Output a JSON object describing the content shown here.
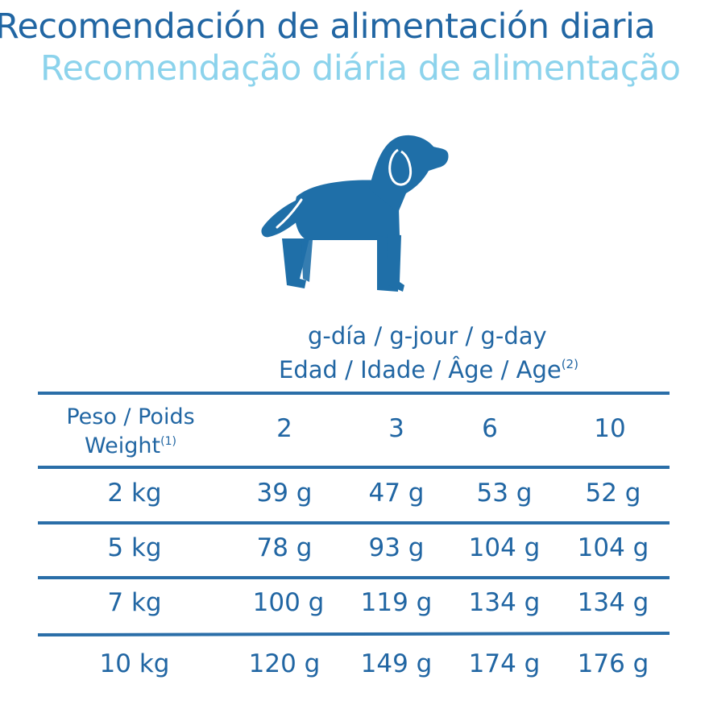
{
  "title": {
    "spanish": "Recomendación de alimentación diaria",
    "portuguese": "Recomendação diária de alimentação"
  },
  "icon": {
    "name": "dog-icon",
    "color": "#1f6fa8"
  },
  "table": {
    "unit_label": "g-día /  g-jour / g-day",
    "age_label": "Edad / Idade / Âge / Age",
    "age_note": "(2)",
    "weight_label_line1": "Peso / Poids",
    "weight_label_line2": "Weight",
    "weight_note": "(1)",
    "age_columns": [
      "2",
      "3",
      "6",
      "10"
    ],
    "rows": [
      {
        "weight": "2 kg",
        "values": [
          "39 g",
          "47 g",
          "53 g",
          "52 g"
        ]
      },
      {
        "weight": "5 kg",
        "values": [
          "78 g",
          "93 g",
          "104 g",
          "104 g"
        ]
      },
      {
        "weight": "7 kg",
        "values": [
          "100 g",
          "119 g",
          "134 g",
          "134 g"
        ]
      },
      {
        "weight": "10 kg",
        "values": [
          "120 g",
          "149 g",
          "174 g",
          "176 g"
        ]
      }
    ]
  },
  "colors": {
    "primary_text": "#2166a3",
    "secondary_text": "#8cd3ec",
    "rule": "#2a6ea8"
  }
}
